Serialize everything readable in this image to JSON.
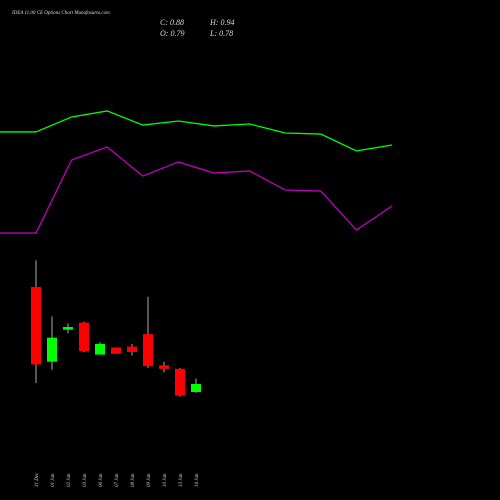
{
  "header": {
    "title": "IDEA 11.00 CE Options Chart Munafasutra.com",
    "close_label": "C: 0.88",
    "high_label": "H: 0.94",
    "open_label": "O: 0.79",
    "low_label": "L: 0.78"
  },
  "chart_data": [
    {
      "type": "line",
      "ylim": [
        0,
        100
      ],
      "series": [
        {
          "color": "#00ff00",
          "values": [
            78.7,
            88.7,
            92.7,
            83.3,
            86,
            82.7,
            84,
            78,
            77.3,
            66,
            70
          ]
        },
        {
          "color": "#c000c0",
          "values": [
            11.3,
            60,
            68.7,
            49.3,
            58.7,
            51.3,
            52.7,
            40,
            39.3,
            13.3,
            29.3
          ]
        }
      ]
    },
    {
      "type": "candlestick",
      "ylim": [
        0.3,
        2.5
      ],
      "up_color": "#00ff00",
      "down_color": "#ff0000",
      "categories": [
        "31 Dec",
        "01 Jan",
        "02 Jan",
        "03 Jan",
        "06 Jan",
        "07 Jan",
        "08 Jan",
        "09 Jan",
        "10 Jan",
        "13 Jan",
        "14 Jan"
      ],
      "open": [
        1.97,
        1.13,
        1.49,
        1.57,
        1.21,
        1.29,
        1.3,
        1.44,
        1.09,
        1.05,
        0.79
      ],
      "high": [
        2.27,
        1.64,
        1.56,
        1.58,
        1.35,
        1.29,
        1.33,
        1.86,
        1.13,
        1.06,
        0.94
      ],
      "low": [
        0.89,
        1.04,
        1.45,
        1.24,
        1.21,
        1.22,
        1.2,
        1.06,
        1.01,
        0.74,
        0.78
      ],
      "close": [
        1.1,
        1.4,
        1.52,
        1.25,
        1.33,
        1.22,
        1.24,
        1.08,
        1.05,
        0.75,
        0.88
      ]
    }
  ]
}
